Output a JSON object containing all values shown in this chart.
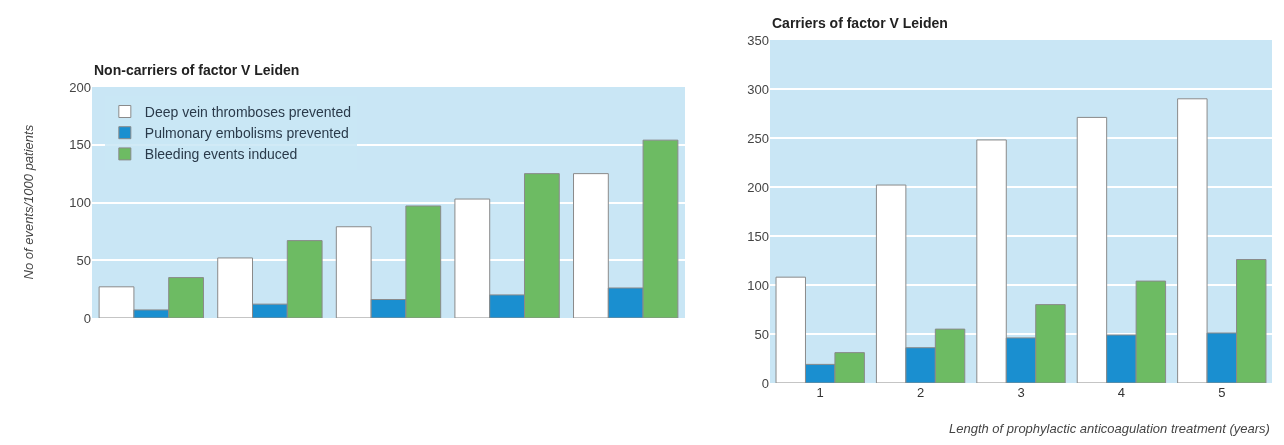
{
  "chart_data": [
    {
      "type": "bar",
      "title": "Non-carriers of factor V Leiden",
      "ylabel": "No of events/1000 patients",
      "categories": [
        null,
        null,
        null,
        null,
        null
      ],
      "ylim": [
        0,
        200
      ],
      "yticks": [
        0,
        50,
        100,
        150,
        200
      ],
      "grid": "y",
      "legend": "top left",
      "tick_labels": "y",
      "series": [
        {
          "name": "Deep vein thromboses prevented",
          "color": "#ffffff",
          "values": [
            27,
            52,
            79,
            103,
            125
          ]
        },
        {
          "name": "Pulmonary embolisms prevented",
          "color": "#1a8fd0",
          "values": [
            7,
            12,
            16,
            20,
            26
          ]
        },
        {
          "name": "Bleeding events induced",
          "color": "#6dbb63",
          "values": [
            35,
            67,
            97,
            125,
            154
          ]
        }
      ]
    },
    {
      "type": "bar",
      "title": "Carriers of factor V Leiden",
      "xlabel": "Length of prophylactic anticoagulation treatment (years)",
      "categories": [
        "1",
        "2",
        "3",
        "4",
        "5"
      ],
      "ylim": [
        0,
        350
      ],
      "yticks": [
        0,
        50,
        100,
        150,
        200,
        250,
        300,
        350
      ],
      "grid": "y",
      "series": [
        {
          "color": "#ffffff",
          "values": [
            108,
            202,
            248,
            271,
            290
          ]
        },
        {
          "color": "#1a8fd0",
          "values": [
            19,
            36,
            46,
            49,
            51
          ]
        },
        {
          "color": "#6dbb63",
          "values": [
            31,
            55,
            80,
            104,
            126
          ]
        }
      ]
    }
  ]
}
